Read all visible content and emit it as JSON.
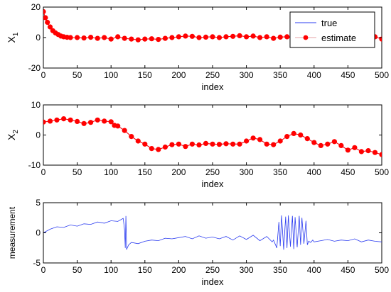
{
  "colors": {
    "true_line": "#2b3cf0",
    "estimate": "#ff0000",
    "legend_estimate_line": "#e4a0a6",
    "axes": "#000000",
    "background": "#ffffff"
  },
  "chart_data": [
    {
      "type": "line",
      "ylabel": "X",
      "ylabel_sub": "1",
      "xlabel": "index",
      "xlim": [
        0,
        500
      ],
      "ylim": [
        -20,
        20
      ],
      "xticks": [
        "0",
        "50",
        "100",
        "150",
        "200",
        "250",
        "300",
        "350",
        "400",
        "450",
        "500"
      ],
      "yticks": [
        "20",
        "0",
        "-20"
      ],
      "grid": false,
      "legend_position": "top-right",
      "legend": [
        {
          "label": "true",
          "style": "line"
        },
        {
          "label": "estimate",
          "style": "line-with-dot-markers"
        }
      ],
      "series": [
        {
          "name": "true",
          "x": [
            0,
            3,
            6,
            10,
            14,
            18,
            22,
            26,
            30,
            35,
            40,
            50,
            60,
            70,
            80,
            90,
            100,
            110,
            120,
            130,
            140,
            150,
            160,
            170,
            180,
            190,
            200,
            210,
            220,
            230,
            240,
            250,
            260,
            270,
            280,
            290,
            300,
            310,
            320,
            330,
            340,
            350,
            360,
            370,
            380,
            390,
            400,
            410,
            420,
            430,
            440,
            450,
            460,
            470,
            480,
            490,
            500
          ],
          "y": [
            17,
            13,
            10,
            7,
            4.5,
            3,
            2,
            1,
            0.5,
            0.2,
            0,
            0,
            -0.3,
            0.2,
            -0.5,
            0,
            -1,
            0.5,
            -0.5,
            -1,
            -1.5,
            -1,
            -0.8,
            -1.2,
            -0.5,
            0,
            0.5,
            1,
            0.8,
            0,
            0.3,
            0.5,
            0,
            0.5,
            0.8,
            1.2,
            0.5,
            1,
            0,
            0.5,
            -0.5,
            0.3,
            0.5,
            0,
            0.8,
            0.5,
            0,
            0.5,
            1,
            0.5,
            0,
            0.5,
            1,
            0.5,
            0,
            0.5,
            -1
          ]
        },
        {
          "name": "estimate",
          "x": [
            0,
            3,
            6,
            10,
            14,
            18,
            22,
            26,
            30,
            35,
            40,
            50,
            60,
            70,
            80,
            90,
            100,
            110,
            120,
            130,
            140,
            150,
            160,
            170,
            180,
            190,
            200,
            210,
            220,
            230,
            240,
            250,
            260,
            270,
            280,
            290,
            300,
            310,
            320,
            330,
            340,
            350,
            360,
            370,
            380,
            390,
            400,
            410,
            420,
            430,
            440,
            450,
            460,
            470,
            480,
            490,
            500
          ],
          "y": [
            17,
            13,
            10,
            7,
            4.5,
            3,
            2,
            1,
            0.5,
            0.2,
            0,
            0,
            -0.3,
            0.2,
            -0.5,
            0,
            -1,
            0.5,
            -0.5,
            -1,
            -1.5,
            -1,
            -0.8,
            -1.2,
            -0.5,
            0,
            0.5,
            1,
            0.8,
            0,
            0.3,
            0.5,
            0,
            0.5,
            0.8,
            1.2,
            0.5,
            1,
            0,
            0.5,
            -0.5,
            0.3,
            0.5,
            0,
            0.8,
            0.5,
            0,
            0.5,
            1,
            0.5,
            0,
            0.5,
            1,
            0.5,
            0,
            0.5,
            -1
          ]
        }
      ]
    },
    {
      "type": "line",
      "ylabel": "X",
      "ylabel_sub": "2",
      "xlabel": "index",
      "xlim": [
        0,
        500
      ],
      "ylim": [
        -10,
        10
      ],
      "xticks": [
        "0",
        "50",
        "100",
        "150",
        "200",
        "250",
        "300",
        "350",
        "400",
        "450",
        "500"
      ],
      "yticks": [
        "10",
        "0",
        "-10"
      ],
      "grid": false,
      "series": [
        {
          "name": "true",
          "x": [
            0,
            10,
            20,
            30,
            40,
            50,
            60,
            70,
            80,
            90,
            100,
            105,
            110,
            120,
            130,
            140,
            150,
            160,
            170,
            180,
            190,
            200,
            210,
            220,
            230,
            240,
            250,
            260,
            270,
            280,
            290,
            300,
            310,
            320,
            330,
            340,
            350,
            360,
            370,
            380,
            390,
            400,
            410,
            420,
            430,
            440,
            450,
            460,
            470,
            480,
            490,
            500
          ],
          "y": [
            4.3,
            4.6,
            5,
            5.4,
            5,
            4.5,
            3.8,
            4.2,
            5,
            4.6,
            4.4,
            3.2,
            3,
            1.5,
            -0.5,
            -2,
            -3,
            -4.5,
            -4.8,
            -4,
            -3.2,
            -3,
            -3.8,
            -3,
            -3.3,
            -2.8,
            -3,
            -3.1,
            -2.9,
            -3,
            -3,
            -2,
            -1,
            -1.5,
            -3,
            -3.2,
            -2,
            -0.5,
            0.5,
            0,
            -1.2,
            -2.5,
            -3.5,
            -3,
            -2.2,
            -3.5,
            -5,
            -4.2,
            -5.5,
            -5.2,
            -5.8,
            -6.5
          ]
        },
        {
          "name": "estimate",
          "x": [
            0,
            10,
            20,
            30,
            40,
            50,
            60,
            70,
            80,
            90,
            100,
            105,
            110,
            120,
            130,
            140,
            150,
            160,
            170,
            180,
            190,
            200,
            210,
            220,
            230,
            240,
            250,
            260,
            270,
            280,
            290,
            300,
            310,
            320,
            330,
            340,
            350,
            360,
            370,
            380,
            390,
            400,
            410,
            420,
            430,
            440,
            450,
            460,
            470,
            480,
            490,
            500
          ],
          "y": [
            4.3,
            4.6,
            5,
            5.4,
            5,
            4.5,
            3.8,
            4.2,
            5,
            4.6,
            4.4,
            3.2,
            3,
            1.5,
            -0.5,
            -2,
            -3,
            -4.5,
            -4.8,
            -4,
            -3.2,
            -3,
            -3.8,
            -3,
            -3.3,
            -2.8,
            -3,
            -3.1,
            -2.9,
            -3,
            -3,
            -2,
            -1,
            -1.5,
            -3,
            -3.2,
            -2,
            -0.5,
            0.5,
            0,
            -1.2,
            -2.5,
            -3.5,
            -3,
            -2.2,
            -3.5,
            -5,
            -4.2,
            -5.5,
            -5.2,
            -5.8,
            -6.5
          ]
        }
      ]
    },
    {
      "type": "line",
      "ylabel": "measurement",
      "xlabel": "index",
      "xlim": [
        0,
        500
      ],
      "ylim": [
        -5,
        5
      ],
      "xticks": [
        "0",
        "50",
        "100",
        "150",
        "200",
        "250",
        "300",
        "350",
        "400",
        "450",
        "500"
      ],
      "yticks": [
        "5",
        "0",
        "-5"
      ],
      "grid": false,
      "series": [
        {
          "name": "measurement",
          "x": [
            0,
            10,
            20,
            30,
            40,
            50,
            60,
            70,
            80,
            90,
            100,
            110,
            118,
            120,
            121,
            122,
            123,
            124,
            126,
            130,
            140,
            150,
            160,
            170,
            180,
            190,
            200,
            210,
            220,
            230,
            240,
            250,
            260,
            270,
            280,
            290,
            300,
            310,
            320,
            330,
            338,
            340,
            345,
            348,
            350,
            352,
            355,
            358,
            360,
            362,
            365,
            368,
            370,
            372,
            375,
            378,
            380,
            382,
            385,
            388,
            390,
            392,
            395,
            398,
            400,
            410,
            420,
            430,
            440,
            450,
            460,
            470,
            480,
            490,
            500
          ],
          "y": [
            0,
            0.6,
            1.0,
            0.9,
            1.3,
            1.1,
            1.5,
            1.4,
            1.8,
            1.6,
            2.0,
            1.9,
            2.4,
            0.5,
            -2.5,
            2.8,
            -2.8,
            -2.5,
            -2.0,
            -1.6,
            -1.8,
            -1.4,
            -1.2,
            -1.3,
            -0.9,
            -1.0,
            -0.8,
            -0.6,
            -1.0,
            -0.5,
            -0.9,
            -0.7,
            -1.0,
            -0.6,
            -1.2,
            -0.5,
            -1.1,
            -0.4,
            -1.3,
            -0.6,
            -1.5,
            -1.2,
            -2.5,
            1.8,
            -2.2,
            2.9,
            -2.8,
            2.7,
            -2.5,
            2.9,
            -2.3,
            2.8,
            -2.7,
            2.6,
            -2.4,
            2.8,
            -2.0,
            2.5,
            -1.8,
            2.0,
            -2.0,
            -1.4,
            -1.6,
            -1.2,
            -1.5,
            -1.3,
            -1.1,
            -1.4,
            -1.2,
            -1.3,
            -1.0,
            -1.5,
            -1.2,
            -1.4,
            -1.5
          ]
        }
      ]
    }
  ]
}
